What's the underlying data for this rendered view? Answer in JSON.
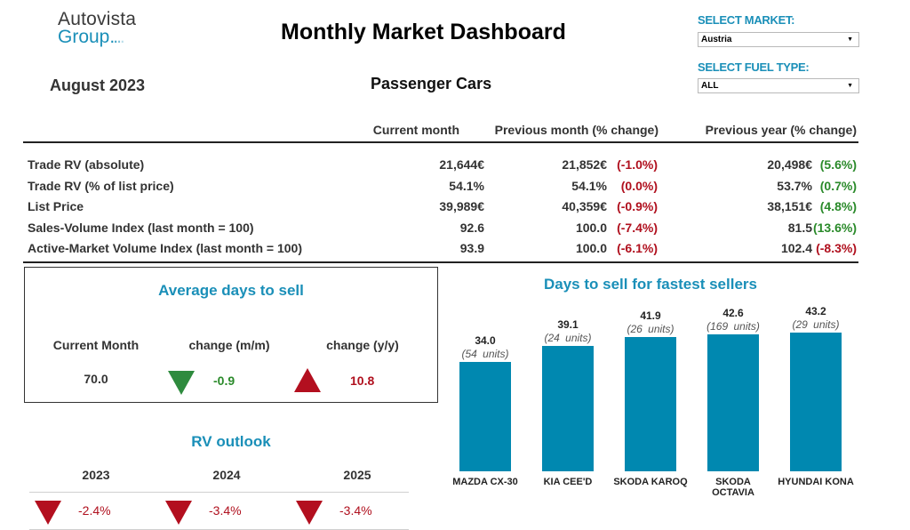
{
  "brand": {
    "line1": "Autovista",
    "line2": "Group",
    "dots": "...."
  },
  "header": {
    "title": "Monthly Market Dashboard",
    "period": "August 2023",
    "segment": "Passenger Cars"
  },
  "filters": {
    "market": {
      "label": "SELECT MARKET:",
      "value": "Austria"
    },
    "fuel": {
      "label": "SELECT FUEL TYPE:",
      "value": "ALL"
    }
  },
  "kpi_table": {
    "columns": [
      "Current month",
      "Previous month (% change)",
      "Previous year (% change)"
    ],
    "rows": [
      {
        "label": "Trade RV (absolute)",
        "current": "21,644€",
        "prev_month": "21,852€",
        "prev_month_change": "(-1.0%)",
        "prev_month_trend": "neg",
        "prev_year": "20,498€",
        "prev_year_change": "(5.6%)",
        "prev_year_trend": "pos"
      },
      {
        "label": "Trade RV (% of list price)",
        "current": "54.1%",
        "prev_month": "54.1%",
        "prev_month_change": "(0.0%)",
        "prev_month_trend": "neg",
        "prev_year": "53.7%",
        "prev_year_change": "(0.7%)",
        "prev_year_trend": "pos"
      },
      {
        "label": "List Price",
        "current": "39,989€",
        "prev_month": "40,359€",
        "prev_month_change": "(-0.9%)",
        "prev_month_trend": "neg",
        "prev_year": "38,151€",
        "prev_year_change": "(4.8%)",
        "prev_year_trend": "pos"
      },
      {
        "label": "Sales-Volume Index (last month = 100)",
        "current": "92.6",
        "prev_month": "100.0",
        "prev_month_change": "(-7.4%)",
        "prev_month_trend": "neg",
        "prev_year": "81.5",
        "prev_year_change": "(13.6%)",
        "prev_year_trend": "pos"
      },
      {
        "label": "Active-Market Volume Index (last month = 100)",
        "current": "93.9",
        "prev_month": "100.0",
        "prev_month_change": "(-6.1%)",
        "prev_month_trend": "neg",
        "prev_year": "102.4",
        "prev_year_change": "(-8.3%)",
        "prev_year_trend": "neg"
      }
    ]
  },
  "avg_days": {
    "title": "Average days to sell",
    "current_label": "Current Month",
    "mm_label": "change (m/m)",
    "yy_label": "change (y/y)",
    "current_value": "70.0",
    "mm_value": "-0.9",
    "mm_icon": "triangle-down-green-icon",
    "yy_value": "10.8",
    "yy_icon": "triangle-up-red-icon"
  },
  "rv_outlook": {
    "title": "RV outlook",
    "years": [
      {
        "year": "2023",
        "value": "-2.4%",
        "icon": "triangle-down-red-icon"
      },
      {
        "year": "2024",
        "value": "-3.4%",
        "icon": "triangle-down-red-icon"
      },
      {
        "year": "2025",
        "value": "-3.4%",
        "icon": "triangle-down-red-icon"
      }
    ]
  },
  "colors": {
    "accent": "#1a8fb8",
    "bar": "#0088b0",
    "negative": "#b0101e",
    "positive": "#2a8a2a"
  },
  "chart_data": {
    "type": "bar",
    "title": "Days to sell for fastest sellers",
    "categories": [
      "MAZDA CX-30",
      "KIA CEE'D",
      "SKODA KAROQ",
      "SKODA OCTAVIA",
      "HYUNDAI KONA"
    ],
    "values": [
      34.0,
      39.1,
      41.9,
      42.6,
      43.2
    ],
    "value_labels": [
      "34.0",
      "39.1",
      "41.9",
      "42.6",
      "43.2"
    ],
    "units_labels": [
      "(54  units)",
      "(24  units)",
      "(26  units)",
      "(169  units)",
      "(29  units)"
    ],
    "xlabel": "",
    "ylabel": "",
    "ylim": [
      0,
      43.2
    ],
    "grid": false,
    "legend": "none"
  }
}
